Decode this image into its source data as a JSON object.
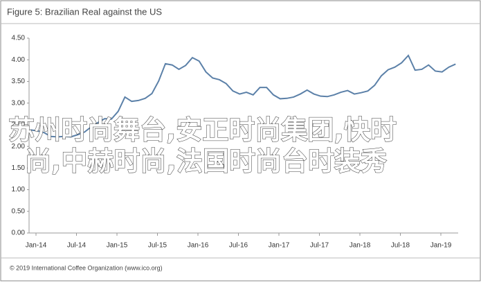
{
  "chart_data": {
    "type": "line",
    "title": "Figure 5: Brazilian Real against the US",
    "source": "© 2019 International Coffee Organization (www.ico.org)",
    "overlay": [
      "苏州时尚舞台,安正时尚集团,快时",
      "尚,中赫时尚,法国时尚台时装秀"
    ],
    "categories": [
      "Jan-14",
      null,
      null,
      null,
      null,
      null,
      "Jul-14",
      null,
      null,
      null,
      null,
      null,
      "Jan-15",
      null,
      null,
      null,
      null,
      null,
      "Jul-15",
      null,
      null,
      null,
      null,
      null,
      "Jan-16",
      null,
      null,
      null,
      null,
      null,
      "Jul-16",
      null,
      null,
      null,
      null,
      null,
      "Jan-17",
      null,
      null,
      null,
      null,
      null,
      "Jul-17",
      null,
      null,
      null,
      null,
      null,
      "Jan-18",
      null,
      null,
      null,
      null,
      null,
      "Jul-18",
      null,
      null,
      null,
      null,
      null,
      "Jan-19",
      null,
      null,
      null
    ],
    "series": [
      {
        "color": "#5b80a8",
        "values": [
          2.38,
          2.36,
          2.32,
          2.23,
          2.22,
          2.23,
          2.22,
          2.27,
          2.33,
          2.45,
          2.55,
          2.64,
          2.63,
          2.81,
          3.14,
          3.04,
          3.06,
          3.11,
          3.22,
          3.51,
          3.91,
          3.88,
          3.78,
          3.87,
          4.05,
          3.97,
          3.72,
          3.58,
          3.54,
          3.45,
          3.28,
          3.21,
          3.25,
          3.19,
          3.36,
          3.36,
          3.19,
          3.1,
          3.11,
          3.14,
          3.21,
          3.3,
          3.21,
          3.16,
          3.15,
          3.19,
          3.25,
          3.29,
          3.21,
          3.24,
          3.28,
          3.41,
          3.63,
          3.77,
          3.83,
          3.93,
          4.1,
          3.76,
          3.78,
          3.88,
          3.74,
          3.72,
          3.83,
          3.9
        ]
      }
    ],
    "ylim": [
      0,
      4.5
    ],
    "yticks": [
      {
        "value": 0,
        "label": "0.00"
      },
      {
        "value": 0.5,
        "label": "0.50"
      },
      {
        "value": 1,
        "label": "1.00"
      },
      {
        "value": 1.5,
        "label": "1.50"
      },
      {
        "value": 2,
        "label": "2.00"
      },
      {
        "value": 2.5,
        "label": "2.50"
      },
      {
        "value": 3,
        "label": "3.00"
      },
      {
        "value": 3.5,
        "label": "3.50"
      },
      {
        "value": 4,
        "label": "4.00"
      },
      {
        "value": 4.5,
        "label": "4.50"
      }
    ],
    "grid": false
  }
}
